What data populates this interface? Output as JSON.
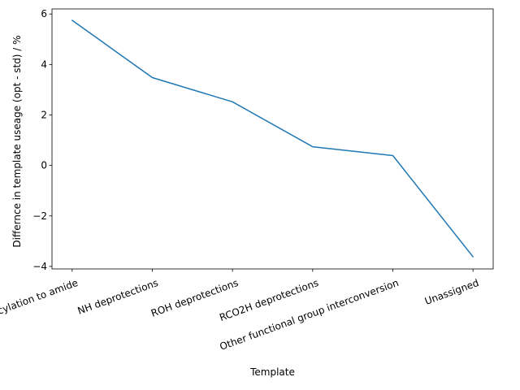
{
  "chart_data": {
    "type": "line",
    "title": "",
    "xlabel": "Template",
    "ylabel": "Differnce in template useage (opt - std) / %",
    "categories": [
      "N-acylation to amide",
      "NH deprotections",
      "ROH deprotections",
      "RCO2H deprotections",
      "Other functional group interconversion",
      "Unassigned"
    ],
    "series": [
      {
        "values": [
          5.75,
          3.48,
          2.52,
          0.74,
          0.39,
          -3.62
        ]
      }
    ],
    "ylim": [
      -4.1,
      6.2
    ],
    "yticks": [
      -4,
      -2,
      0,
      2,
      4,
      6
    ],
    "grid": false,
    "line_color": "#1f77b4"
  }
}
